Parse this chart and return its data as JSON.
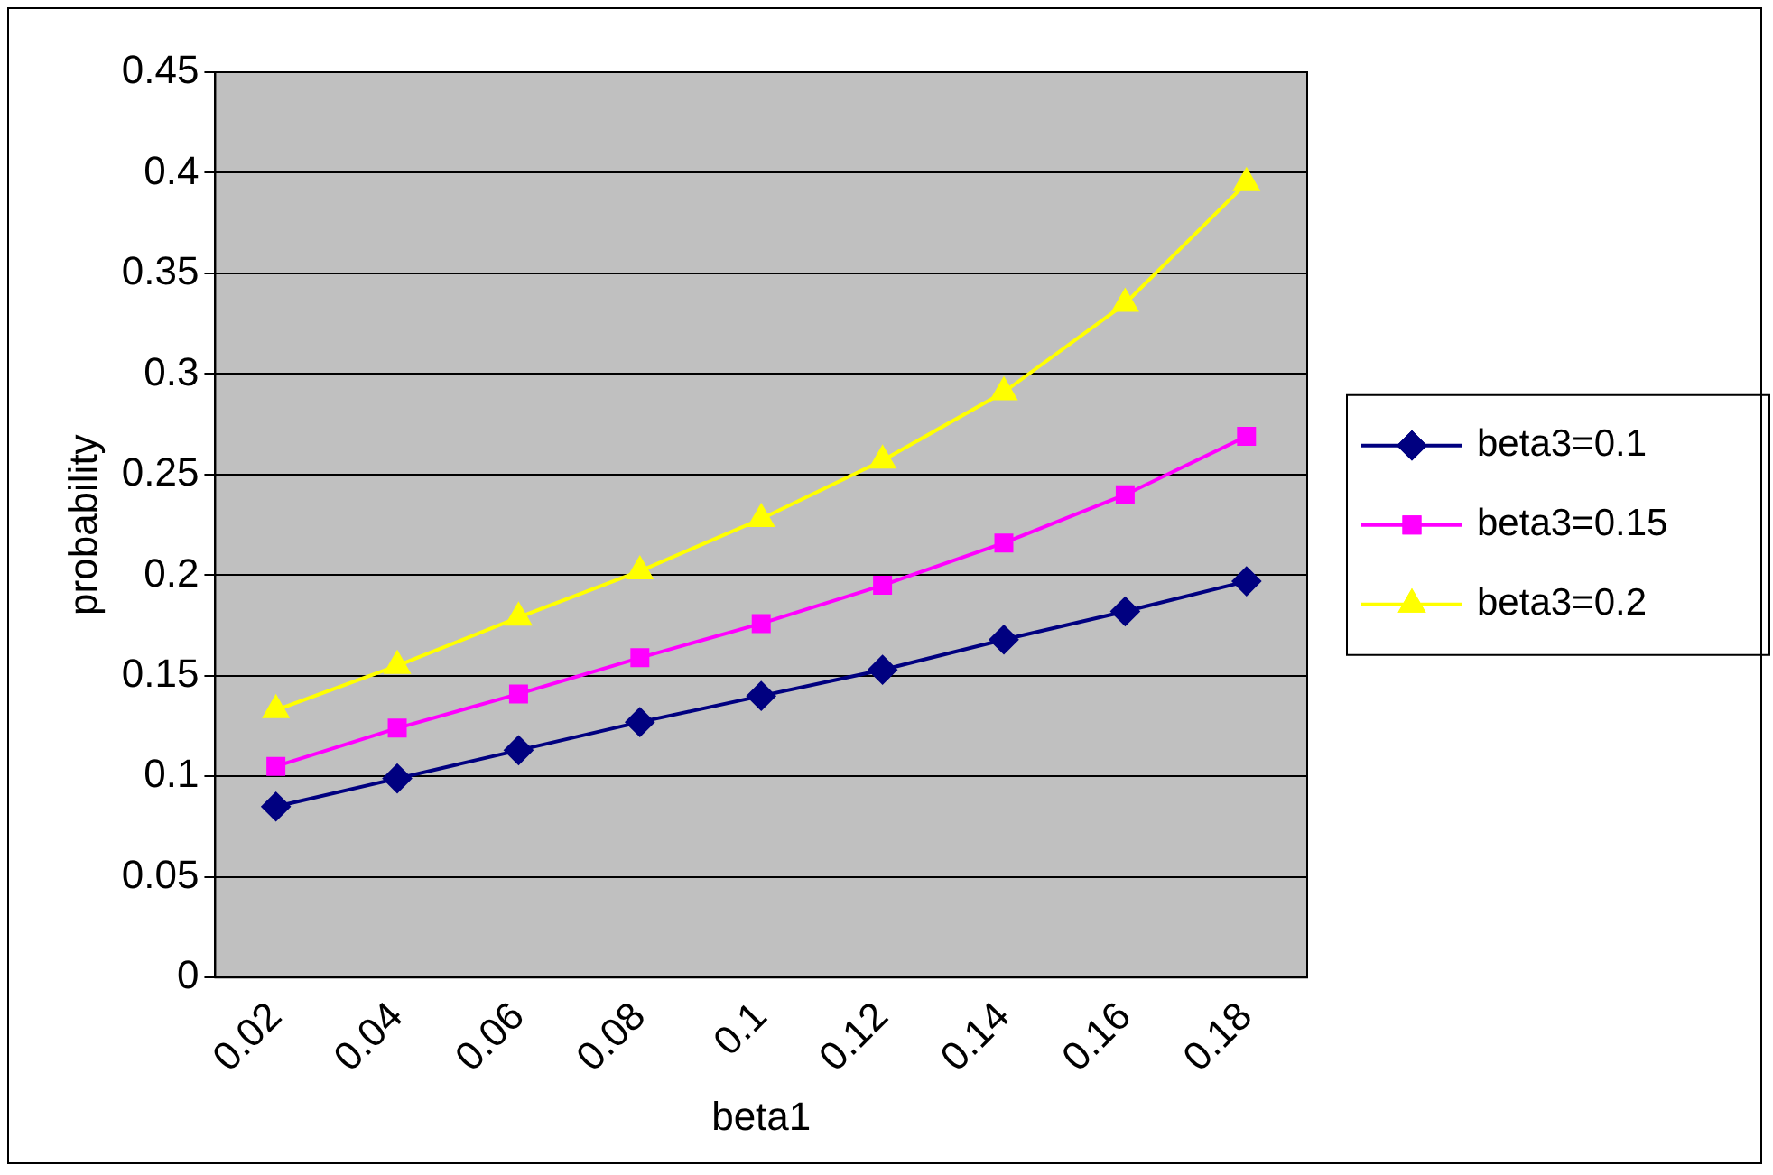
{
  "chart_data": {
    "type": "line",
    "xlabel": "beta1",
    "ylabel": "probability",
    "categories": [
      "0.02",
      "0.04",
      "0.06",
      "0.08",
      "0.1",
      "0.12",
      "0.14",
      "0.16",
      "0.18"
    ],
    "series": [
      {
        "name": "beta3=0.1",
        "color": "#000080",
        "marker": "diamond",
        "values": [
          0.085,
          0.099,
          0.113,
          0.127,
          0.14,
          0.153,
          0.168,
          0.182,
          0.197
        ]
      },
      {
        "name": "beta3=0.15",
        "color": "#ff00ff",
        "marker": "square",
        "values": [
          0.105,
          0.124,
          0.141,
          0.159,
          0.176,
          0.195,
          0.216,
          0.24,
          0.269
        ]
      },
      {
        "name": "beta3=0.2",
        "color": "#ffff00",
        "marker": "triangle",
        "values": [
          0.133,
          0.155,
          0.179,
          0.202,
          0.228,
          0.257,
          0.291,
          0.335,
          0.395
        ]
      }
    ],
    "ylim": [
      0,
      0.45
    ],
    "yticks": [
      0,
      0.05,
      0.1,
      0.15,
      0.2,
      0.25,
      0.3,
      0.35,
      0.4,
      0.45
    ],
    "grid": "y",
    "legend": "right",
    "line_style": "solid"
  }
}
